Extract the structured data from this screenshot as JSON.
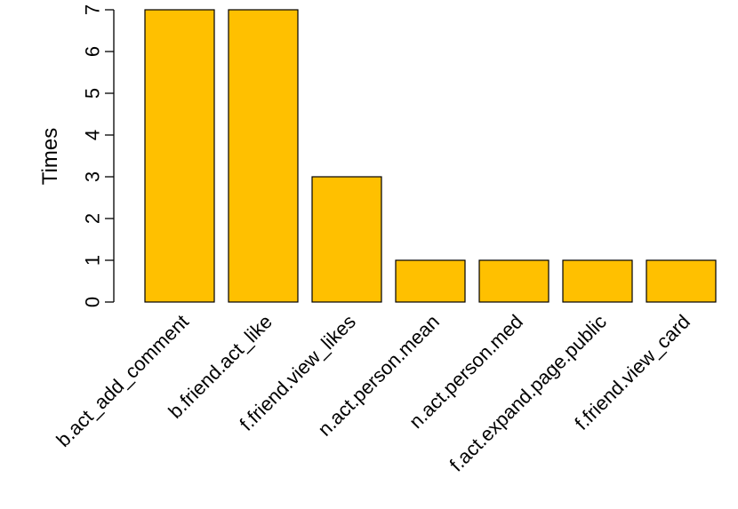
{
  "chart_data": {
    "type": "bar",
    "categories": [
      "b.act_add_comment",
      "b.friend.act_like",
      "f.friend.view_likes",
      "n.act.person.mean",
      "n.act.person.med",
      "f.act.expand.page.public",
      "f.friend.view_card"
    ],
    "values": [
      7,
      7,
      3,
      1,
      1,
      1,
      1
    ],
    "ylabel": "Times",
    "xlabel": "",
    "title": "",
    "ylim": [
      0,
      7
    ],
    "yticks": [
      0,
      1,
      2,
      3,
      4,
      5,
      6,
      7
    ],
    "bar_color": "#FFC000",
    "grid": false
  }
}
